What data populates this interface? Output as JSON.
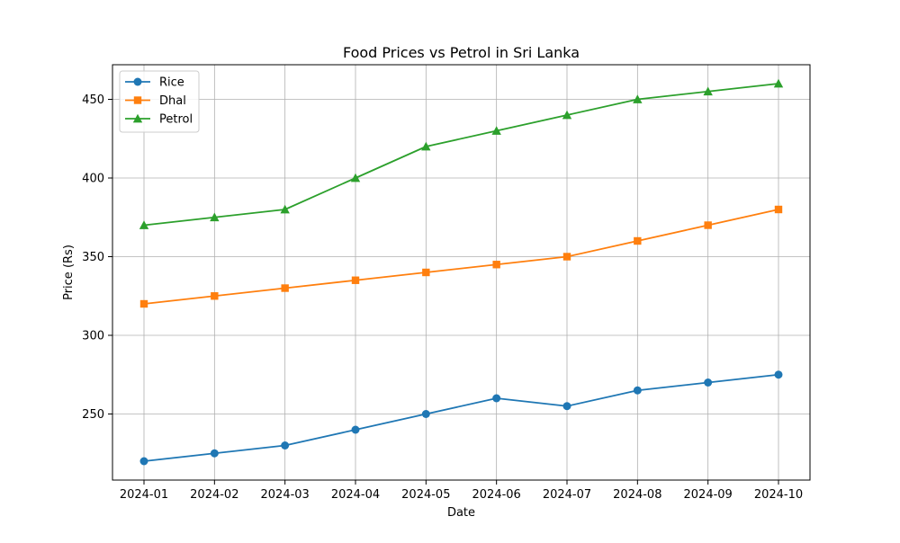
{
  "chart_data": {
    "type": "line",
    "title": "Food Prices vs Petrol in Sri Lanka",
    "xlabel": "Date",
    "ylabel": "Price (Rs)",
    "x": [
      "2024-01",
      "2024-02",
      "2024-03",
      "2024-04",
      "2024-05",
      "2024-06",
      "2024-07",
      "2024-08",
      "2024-09",
      "2024-10"
    ],
    "ylim": [
      208,
      472
    ],
    "yticks": [
      250,
      300,
      350,
      400,
      450
    ],
    "grid": true,
    "legend_position": "top-left",
    "series": [
      {
        "name": "Rice",
        "color": "#1f77b4",
        "marker": "circle",
        "values": [
          220,
          225,
          230,
          240,
          250,
          260,
          255,
          265,
          270,
          275
        ]
      },
      {
        "name": "Dhal",
        "color": "#ff7f0e",
        "marker": "square",
        "values": [
          320,
          325,
          330,
          335,
          340,
          345,
          350,
          360,
          370,
          380
        ]
      },
      {
        "name": "Petrol",
        "color": "#2ca02c",
        "marker": "triangle",
        "values": [
          370,
          375,
          380,
          400,
          420,
          430,
          440,
          450,
          455,
          460
        ]
      }
    ]
  }
}
